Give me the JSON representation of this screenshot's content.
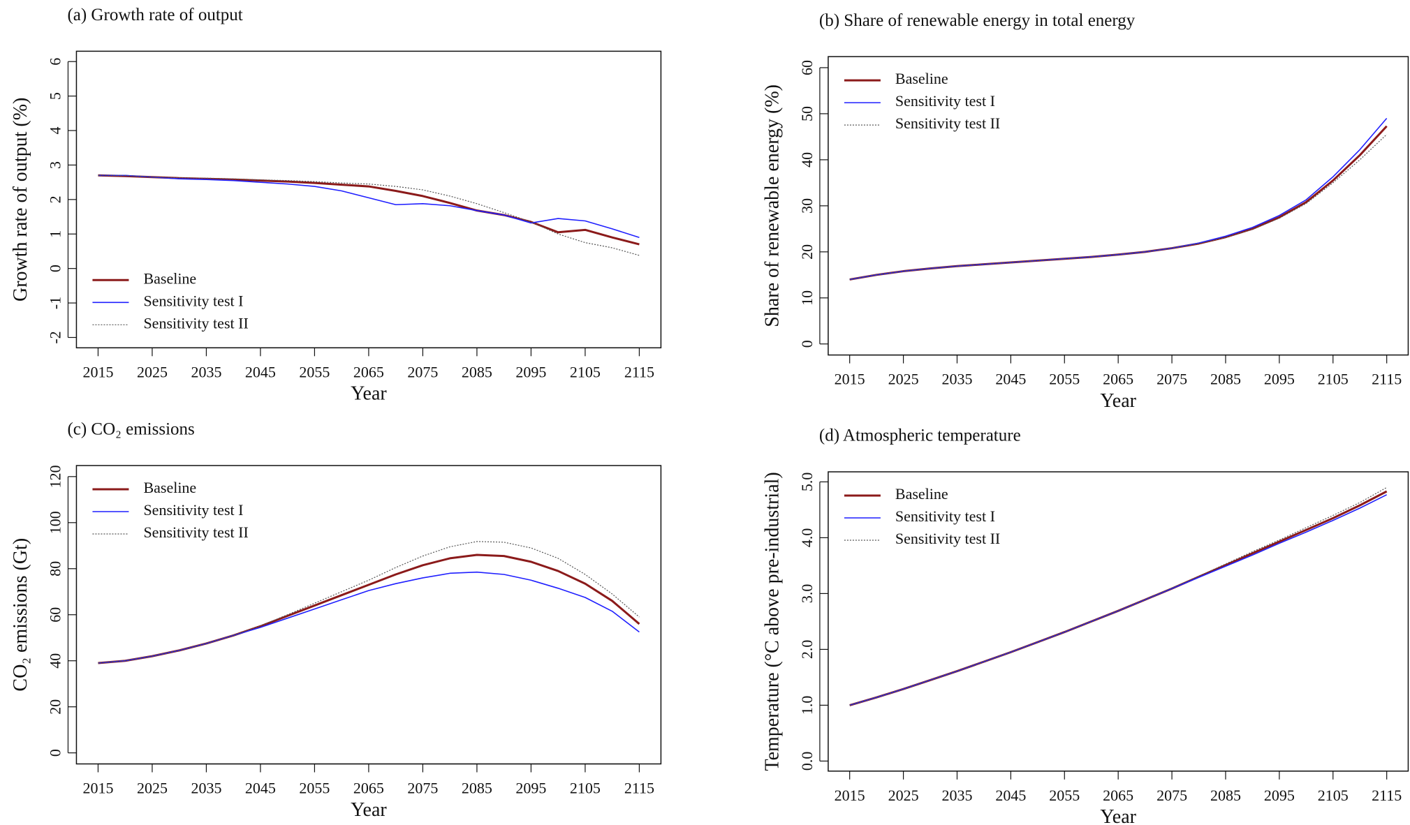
{
  "chart_data": [
    {
      "type": "line",
      "title": "(a) Growth rate of output",
      "xlabel": "Year",
      "ylabel": "Growth rate of output (%)",
      "x": [
        2015,
        2020,
        2025,
        2030,
        2035,
        2040,
        2045,
        2050,
        2055,
        2060,
        2065,
        2070,
        2075,
        2080,
        2085,
        2090,
        2095,
        2100,
        2105,
        2110,
        2115
      ],
      "xlim": [
        2011,
        2119
      ],
      "xticks": [
        2015,
        2025,
        2035,
        2045,
        2055,
        2065,
        2075,
        2085,
        2095,
        2105,
        2115
      ],
      "ylim": [
        -2.3,
        6.3
      ],
      "yticks": [
        -2,
        -1,
        0,
        1,
        2,
        3,
        4,
        5,
        6
      ],
      "legend": "bottom-left",
      "series": [
        {
          "name": "Baseline",
          "color": "#8b1a1a",
          "linewidth": 3,
          "line_style": "solid",
          "values": [
            2.7,
            2.68,
            2.65,
            2.62,
            2.6,
            2.58,
            2.55,
            2.52,
            2.48,
            2.43,
            2.38,
            2.25,
            2.1,
            1.9,
            1.68,
            1.55,
            1.35,
            1.05,
            1.12,
            0.9,
            0.7
          ]
        },
        {
          "name": "Sensitivity test I",
          "color": "#1f1fff",
          "linewidth": 1.6,
          "line_style": "solid",
          "values": [
            2.7,
            2.7,
            2.65,
            2.6,
            2.58,
            2.55,
            2.5,
            2.45,
            2.38,
            2.25,
            2.05,
            1.85,
            1.88,
            1.82,
            1.68,
            1.55,
            1.32,
            1.45,
            1.38,
            1.15,
            0.9
          ]
        },
        {
          "name": "Sensitivity test II",
          "color": "#555555",
          "linewidth": 1.2,
          "line_style": "dotted",
          "values": [
            2.7,
            2.7,
            2.65,
            2.63,
            2.62,
            2.6,
            2.57,
            2.55,
            2.52,
            2.48,
            2.45,
            2.38,
            2.28,
            2.1,
            1.88,
            1.62,
            1.35,
            1.0,
            0.75,
            0.6,
            0.38
          ]
        }
      ]
    },
    {
      "type": "line",
      "title": "(b) Share of renewable energy in total energy",
      "xlabel": "Year",
      "ylabel": "Share of renewable energy (%)",
      "x": [
        2015,
        2020,
        2025,
        2030,
        2035,
        2040,
        2045,
        2050,
        2055,
        2060,
        2065,
        2070,
        2075,
        2080,
        2085,
        2090,
        2095,
        2100,
        2105,
        2110,
        2115
      ],
      "xlim": [
        2011,
        2119
      ],
      "xticks": [
        2015,
        2025,
        2035,
        2045,
        2055,
        2065,
        2075,
        2085,
        2095,
        2105,
        2115
      ],
      "ylim": [
        -2.4,
        62.4
      ],
      "yticks": [
        0,
        10,
        20,
        30,
        40,
        50,
        60
      ],
      "legend": "top-left",
      "series": [
        {
          "name": "Baseline",
          "color": "#8b1a1a",
          "linewidth": 3,
          "line_style": "solid",
          "values": [
            14,
            15,
            15.8,
            16.4,
            16.9,
            17.3,
            17.7,
            18.1,
            18.5,
            18.9,
            19.4,
            20,
            20.8,
            21.8,
            23.2,
            25,
            27.5,
            30.8,
            35.5,
            41,
            47.3
          ]
        },
        {
          "name": "Sensitivity test I",
          "color": "#1f1fff",
          "linewidth": 1.6,
          "line_style": "solid",
          "values": [
            14,
            15,
            15.8,
            16.4,
            16.9,
            17.3,
            17.7,
            18.1,
            18.5,
            18.9,
            19.4,
            20,
            20.8,
            21.9,
            23.4,
            25.3,
            27.9,
            31.3,
            36.3,
            42.2,
            49
          ]
        },
        {
          "name": "Sensitivity test II",
          "color": "#555555",
          "linewidth": 1.2,
          "line_style": "dotted",
          "values": [
            14,
            15,
            15.8,
            16.4,
            16.9,
            17.3,
            17.7,
            18.1,
            18.5,
            18.9,
            19.4,
            20,
            20.8,
            21.8,
            23.1,
            24.9,
            27.3,
            30.5,
            35,
            40,
            45.5
          ]
        }
      ]
    },
    {
      "type": "line",
      "title": "(c) CO₂ emissions",
      "xlabel": "Year",
      "ylabel": "CO₂ emissions (Gt)",
      "x": [
        2015,
        2020,
        2025,
        2030,
        2035,
        2040,
        2045,
        2050,
        2055,
        2060,
        2065,
        2070,
        2075,
        2080,
        2085,
        2090,
        2095,
        2100,
        2105,
        2110,
        2115
      ],
      "xlim": [
        2011,
        2119
      ],
      "xticks": [
        2015,
        2025,
        2035,
        2045,
        2055,
        2065,
        2075,
        2085,
        2095,
        2105,
        2115
      ],
      "ylim": [
        -4.8,
        124.8
      ],
      "yticks": [
        0,
        20,
        40,
        60,
        80,
        100,
        120
      ],
      "legend": "top-left",
      "series": [
        {
          "name": "Baseline",
          "color": "#8b1a1a",
          "linewidth": 3,
          "line_style": "solid",
          "values": [
            39,
            40,
            42,
            44.5,
            47.5,
            51,
            55,
            59.5,
            64,
            68.5,
            73,
            77.5,
            81.5,
            84.5,
            86,
            85.5,
            83,
            79,
            73.5,
            66,
            56
          ]
        },
        {
          "name": "Sensitivity test I",
          "color": "#1f1fff",
          "linewidth": 1.6,
          "line_style": "solid",
          "values": [
            39,
            40,
            42,
            44.5,
            47.5,
            51,
            54.5,
            58.5,
            62.5,
            66.5,
            70.5,
            73.5,
            76,
            78,
            78.5,
            77.5,
            75,
            71.5,
            67.5,
            61.5,
            52.5
          ]
        },
        {
          "name": "Sensitivity test II",
          "color": "#555555",
          "linewidth": 1.2,
          "line_style": "dotted",
          "values": [
            39,
            40,
            42,
            44.5,
            47.5,
            51,
            55.2,
            60,
            65,
            70,
            75,
            80.5,
            85.5,
            89.5,
            91.8,
            91.5,
            89,
            84.5,
            77.5,
            69,
            59
          ]
        }
      ]
    },
    {
      "type": "line",
      "title": "(d) Atmospheric temperature",
      "xlabel": "Year",
      "ylabel": "Temperature (°C above pre-industrial)",
      "x": [
        2015,
        2020,
        2025,
        2030,
        2035,
        2040,
        2045,
        2050,
        2055,
        2060,
        2065,
        2070,
        2075,
        2080,
        2085,
        2090,
        2095,
        2100,
        2105,
        2110,
        2115
      ],
      "xlim": [
        2011,
        2119
      ],
      "xticks": [
        2015,
        2025,
        2035,
        2045,
        2055,
        2065,
        2075,
        2085,
        2095,
        2105,
        2115
      ],
      "ylim": [
        -0.18,
        5.18
      ],
      "yticks": [
        {
          "value": 0,
          "label": "0.0"
        },
        {
          "value": 1,
          "label": "1.0"
        },
        {
          "value": 2,
          "label": "2.0"
        },
        {
          "value": 3,
          "label": "3.0"
        },
        {
          "value": 4,
          "label": "4.0"
        },
        {
          "value": 5,
          "label": "5.0"
        }
      ],
      "legend": "top-left",
      "series": [
        {
          "name": "Baseline",
          "color": "#8b1a1a",
          "linewidth": 3,
          "line_style": "solid",
          "values": [
            1.0,
            1.14,
            1.29,
            1.45,
            1.61,
            1.78,
            1.95,
            2.13,
            2.31,
            2.5,
            2.69,
            2.89,
            3.09,
            3.3,
            3.51,
            3.72,
            3.93,
            4.14,
            4.35,
            4.58,
            4.83
          ]
        },
        {
          "name": "Sensitivity test I",
          "color": "#1f1fff",
          "linewidth": 1.6,
          "line_style": "solid",
          "values": [
            1.0,
            1.14,
            1.29,
            1.45,
            1.61,
            1.78,
            1.95,
            2.13,
            2.31,
            2.5,
            2.69,
            2.89,
            3.09,
            3.29,
            3.49,
            3.69,
            3.9,
            4.1,
            4.31,
            4.53,
            4.77
          ]
        },
        {
          "name": "Sensitivity test II",
          "color": "#555555",
          "linewidth": 1.2,
          "line_style": "dotted",
          "values": [
            1.0,
            1.14,
            1.29,
            1.45,
            1.61,
            1.78,
            1.95,
            2.13,
            2.31,
            2.5,
            2.69,
            2.89,
            3.1,
            3.31,
            3.53,
            3.75,
            3.96,
            4.18,
            4.4,
            4.63,
            4.9
          ]
        }
      ]
    }
  ]
}
